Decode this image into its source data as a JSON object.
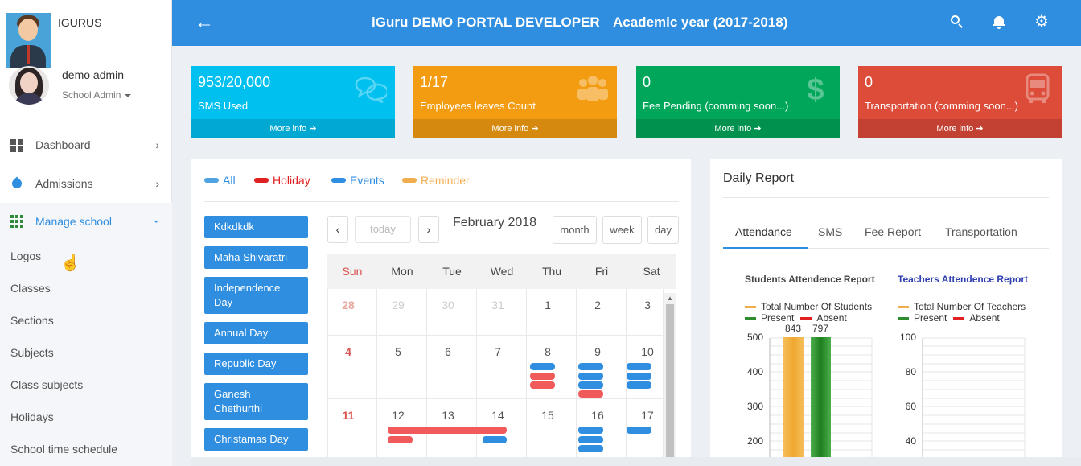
{
  "brand": {
    "name": "IGURUS"
  },
  "user": {
    "name": "demo admin",
    "role": "School Admin"
  },
  "sidebar": {
    "items": [
      {
        "label": "Dashboard",
        "icon": "dashboard-icon"
      },
      {
        "label": "Admissions",
        "icon": "drop-icon"
      },
      {
        "label": "Manage school",
        "icon": "grid-icon"
      }
    ],
    "submenu": [
      "Logos",
      "Classes",
      "Sections",
      "Subjects",
      "Class subjects",
      "Holidays",
      "School time schedule"
    ]
  },
  "header": {
    "title": "iGuru DEMO PORTAL DEVELOPER",
    "year": "Academic year (2017-2018)",
    "color": "#2f8ee0"
  },
  "info_boxes": [
    {
      "value": "953/20,000",
      "label": "SMS Used",
      "more": "More info",
      "color": "#00c0ef",
      "icon": "comments-icon"
    },
    {
      "value": "1/17",
      "label": "Employees leaves Count",
      "more": "More info",
      "color": "#f39c12",
      "icon": "users-icon"
    },
    {
      "value": "0",
      "label": "Fee Pending (comming soon...)",
      "more": "More info",
      "color": "#00a65a",
      "icon": "dollar-icon"
    },
    {
      "value": "0",
      "label": "Transportation (comming soon...)",
      "more": "More info",
      "color": "#dd4b39",
      "icon": "bus-icon"
    }
  ],
  "calendar": {
    "legend": [
      {
        "label": "All",
        "color": "#4fa3e0"
      },
      {
        "label": "Holiday",
        "color": "#e02020"
      },
      {
        "label": "Events",
        "color": "#2f8ee0"
      },
      {
        "label": "Reminder",
        "color": "#f0ad4e"
      }
    ],
    "events": [
      "Kdkdkdk",
      "Maha Shivaratri",
      "Independence Day",
      "Annual Day",
      "Republic Day",
      "Ganesh Chethurthi",
      "Christamas Day"
    ],
    "today_label": "today",
    "month_title": "February 2018",
    "views": [
      "month",
      "week",
      "day"
    ],
    "days_of_week": [
      "Sun",
      "Mon",
      "Tue",
      "Wed",
      "Thu",
      "Fri",
      "Sat"
    ],
    "weeks": [
      [
        "28",
        "29",
        "30",
        "31",
        "1",
        "2",
        "3"
      ],
      [
        "4",
        "5",
        "6",
        "7",
        "8",
        "9",
        "10"
      ],
      [
        "11",
        "12",
        "13",
        "14",
        "15",
        "16",
        "17"
      ]
    ]
  },
  "report": {
    "title": "Daily Report",
    "tabs": [
      "Attendance",
      "SMS",
      "Fee Report",
      "Transportation"
    ],
    "students_chart": {
      "title": "Students Attendence Report",
      "legend": [
        "Total Number Of Students",
        "Present",
        "Absent"
      ],
      "values": [
        "843",
        "797"
      ],
      "yticks": [
        "500",
        "400",
        "300",
        "200"
      ]
    },
    "teachers_chart": {
      "title": "Teachers Attendence Report",
      "legend": [
        "Total Number Of Teachers",
        "Present",
        "Absent"
      ],
      "yticks": [
        "100",
        "80",
        "60",
        "40"
      ]
    }
  }
}
